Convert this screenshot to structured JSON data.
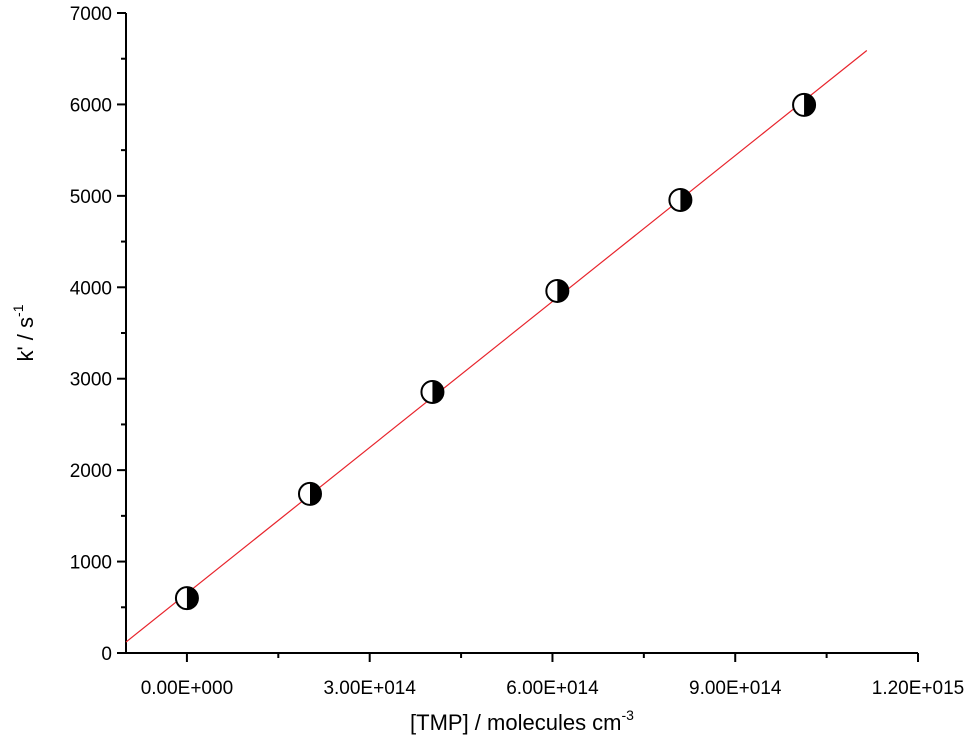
{
  "chart_data": {
    "type": "scatter",
    "x_label": {
      "text": "[TMP] / molecules cm",
      "superscript": "-3"
    },
    "y_label": {
      "text": "k' / s",
      "superscript": "-1"
    },
    "series": [
      {
        "color": "#000000",
        "x": [
          0,
          202000000000000.0,
          403000000000000.0,
          608000000000000.0,
          810000000000000.0,
          1013000000000000.0
        ],
        "values": [
          600,
          1740,
          2855,
          3960,
          4955,
          5995
        ]
      }
    ],
    "fit": {
      "color": "#e8242c",
      "x": [
        -100000000000000.0,
        1116000000000000.0
      ],
      "values": [
        120,
        6590
      ]
    },
    "xlim": [
      -100000000000000.0,
      1200000000000000.0
    ],
    "ylim": [
      0,
      7000
    ],
    "xticks": [
      {
        "value": 0,
        "label": "0.00E+000"
      },
      {
        "value": 300000000000000.0,
        "label": "3.00E+014"
      },
      {
        "value": 600000000000000.0,
        "label": "6.00E+014"
      },
      {
        "value": 900000000000000.0,
        "label": "9.00E+014"
      },
      {
        "value": 1200000000000000.0,
        "label": "1.20E+015"
      }
    ],
    "yticks": [
      0,
      1000,
      2000,
      3000,
      4000,
      5000,
      6000,
      7000
    ],
    "xminorticks": [
      -150000000000000.0,
      150000000000000.0,
      450000000000000.0,
      750000000000000.0,
      1050000000000000.0
    ],
    "yminorticks": [
      500,
      1500,
      2500,
      3500,
      4500,
      5500,
      6500
    ]
  }
}
